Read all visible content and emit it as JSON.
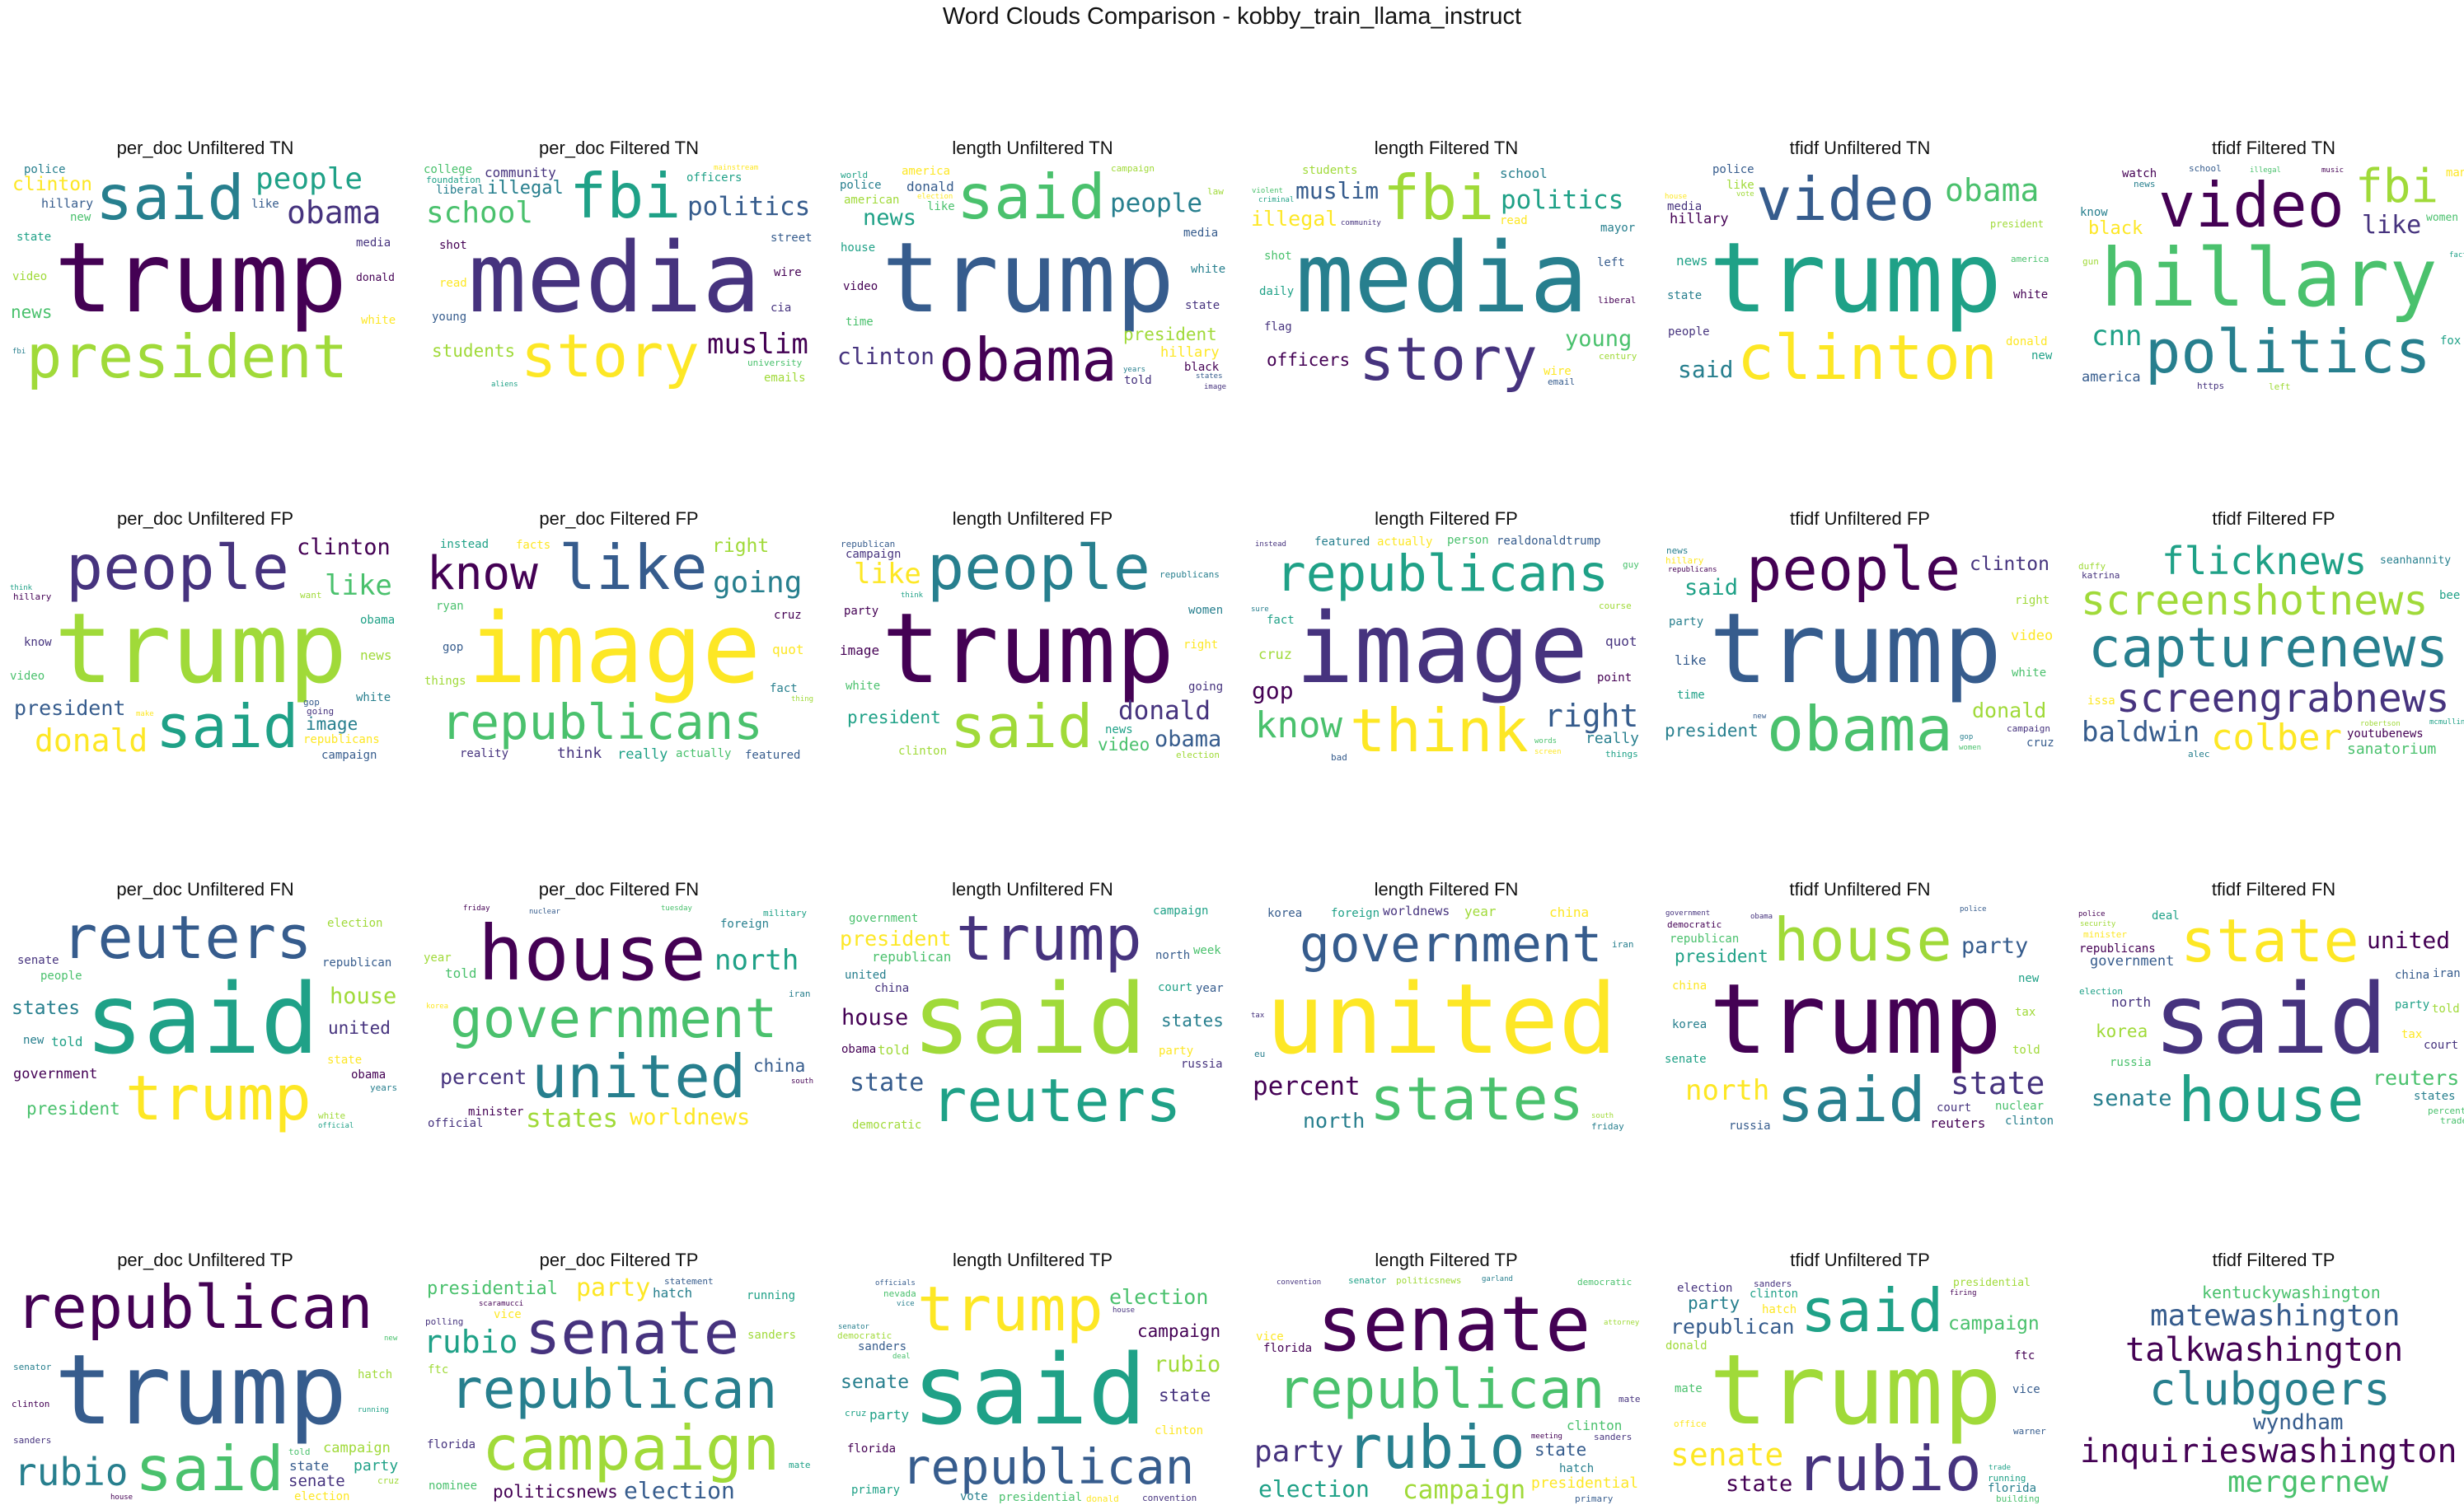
{
  "title": "Word Clouds Comparison - kobby_train_llama_instruct",
  "colors": [
    "#440154",
    "#46337e",
    "#365c8d",
    "#277f8e",
    "#1fa187",
    "#4ac16d",
    "#a0da39",
    "#fde725"
  ],
  "panels": [
    {
      "title": "per_doc Unfiltered TN",
      "words": [
        "trump",
        "said",
        "president",
        "obama",
        "people",
        "clinton",
        "hillary",
        "news",
        "donald",
        "police",
        "video",
        "media",
        "state",
        "white",
        "like",
        "new",
        "house",
        "time",
        "years",
        "american",
        "states",
        "going",
        "security",
        "election",
        "national",
        "fbi",
        "political",
        "says",
        "watch",
        "country",
        "right",
        "wrong",
        "black",
        "government",
        "think"
      ]
    },
    {
      "title": "per_doc Filtered TN",
      "words": [
        "media",
        "fbi",
        "story",
        "politics",
        "school",
        "muslim",
        "illegal",
        "students",
        "community",
        "officers",
        "read",
        "street",
        "university",
        "wire",
        "liberal",
        "emails",
        "cia",
        "foundation",
        "mainstream",
        "young",
        "college",
        "shot",
        "hollywood",
        "leftist",
        "breitbart",
        "aliens",
        "society",
        "reportedly",
        "campus",
        "agents"
      ]
    },
    {
      "title": "length Unfiltered TN",
      "words": [
        "trump",
        "said",
        "obama",
        "people",
        "president",
        "clinton",
        "news",
        "hillary",
        "donald",
        "like",
        "video",
        "white",
        "american",
        "state",
        "house",
        "america",
        "media",
        "time",
        "black",
        "police",
        "campaign",
        "told",
        "world",
        "election",
        "states",
        "security",
        "political",
        "years",
        "law",
        "image"
      ]
    },
    {
      "title": "length Filtered TN",
      "words": [
        "media",
        "fbi",
        "story",
        "politics",
        "illegal",
        "muslim",
        "young",
        "officers",
        "school",
        "students",
        "community",
        "daily",
        "read",
        "left",
        "shot",
        "liberal",
        "mayor",
        "century",
        "flag",
        "criminal",
        "wire",
        "email",
        "violent",
        "records",
        "facebook",
        "leftist",
        "stories",
        "breaking",
        "narrative",
        "controversial"
      ]
    },
    {
      "title": "tfidf Unfiltered TN",
      "words": [
        "trump",
        "clinton",
        "video",
        "obama",
        "hillary",
        "said",
        "president",
        "people",
        "news",
        "donald",
        "police",
        "america",
        "white",
        "state",
        "like",
        "media",
        "new",
        "house",
        "black",
        "politics",
        "american",
        "going",
        "vote",
        "country",
        "watch",
        "fbi",
        "says",
        "want",
        "years",
        "americans"
      ]
    },
    {
      "title": "tfidf Filtered TN",
      "words": [
        "hillary",
        "video",
        "politics",
        "fbi",
        "like",
        "cnn",
        "black",
        "america",
        "women",
        "watch",
        "know",
        "left",
        "https",
        "fox",
        "man",
        "school",
        "illegal",
        "music",
        "news",
        "press",
        "lives",
        "woman",
        "today",
        "students",
        "rally",
        "americans",
        "century",
        "gun",
        "right",
        "fact"
      ]
    },
    {
      "title": "per_doc Unfiltered FP",
      "words": [
        "trump",
        "people",
        "said",
        "donald",
        "president",
        "like",
        "clinton",
        "image",
        "news",
        "know",
        "obama",
        "republicans",
        "campaign",
        "video",
        "hillary",
        "white",
        "want",
        "going",
        "think",
        "make",
        "gop",
        "time",
        "house",
        "black",
        "right",
        "american",
        "election",
        "years",
        "states",
        "says"
      ]
    },
    {
      "title": "per_doc Filtered FP",
      "words": [
        "image",
        "like",
        "republicans",
        "know",
        "going",
        "right",
        "think",
        "really",
        "quot",
        "gop",
        "actually",
        "cruz",
        "fact",
        "things",
        "reality",
        "instead",
        "facts",
        "featured",
        "ryan",
        "realdonaldtrump",
        "pretty",
        "thing",
        "racist",
        "absolutely",
        "vanity",
        "conservatives",
        "bernie",
        "palin",
        "point",
        "imagenes"
      ]
    },
    {
      "title": "length Unfiltered FP",
      "words": [
        "trump",
        "people",
        "said",
        "donald",
        "president",
        "like",
        "obama",
        "video",
        "image",
        "republicans",
        "clinton",
        "campaign",
        "news",
        "right",
        "republican",
        "white",
        "party",
        "women",
        "election",
        "going",
        "think",
        "make",
        "watch",
        "know",
        "time",
        "house",
        "america",
        "states",
        "really",
        "things"
      ]
    },
    {
      "title": "length Filtered FP",
      "words": [
        "image",
        "republicans",
        "think",
        "right",
        "know",
        "gop",
        "really",
        "cruz",
        "quot",
        "fact",
        "actually",
        "realdonaldtrump",
        "person",
        "point",
        "featured",
        "course",
        "instead",
        "things",
        "screen",
        "conservatives",
        "words",
        "bernie",
        "sure",
        "racist",
        "clearly",
        "january",
        "hughes",
        "bad",
        "guy",
        "crowd"
      ]
    },
    {
      "title": "tfidf Unfiltered FP",
      "words": [
        "trump",
        "obama",
        "people",
        "president",
        "donald",
        "clinton",
        "said",
        "video",
        "like",
        "white",
        "republicans",
        "party",
        "right",
        "campaign",
        "time",
        "hillary",
        "cruz",
        "women",
        "america",
        "news",
        "know",
        "make",
        "think",
        "going",
        "new",
        "watch",
        "house",
        "gop",
        "image",
        "says"
      ]
    },
    {
      "title": "tfidf Filtered FP",
      "words": [
        "capturenews",
        "screenshotnews",
        "screengrabnews",
        "flicknews",
        "colber",
        "baldwin",
        "sanatorium",
        "youtubenews",
        "seanhannity",
        "robertson",
        "katrina",
        "mcmullin",
        "issa",
        "sarahpalinusa",
        "disapprove",
        "handshake",
        "alec",
        "duffy",
        "hughes",
        "bee",
        "evolution",
        "mcenany",
        "palatine",
        "spineless",
        "nonsensical",
        "pierre",
        "alicia",
        "obermann",
        "stachowiak",
        "bachmann"
      ]
    },
    {
      "title": "per_doc Unfiltered FN",
      "words": [
        "said",
        "trump",
        "reuters",
        "president",
        "government",
        "states",
        "house",
        "united",
        "told",
        "state",
        "republican",
        "people",
        "obama",
        "new",
        "election",
        "senate",
        "official",
        "political",
        "minister",
        "administration",
        "percent",
        "clinton",
        "white",
        "washington",
        "national",
        "democratic",
        "campaign",
        "including",
        "security",
        "years"
      ]
    },
    {
      "title": "per_doc Filtered FN",
      "words": [
        "government",
        "house",
        "united",
        "states",
        "percent",
        "north",
        "worldnews",
        "china",
        "told",
        "minister",
        "foreign",
        "year",
        "official",
        "military",
        "korea",
        "nuclear",
        "tuesday",
        "friday",
        "iran",
        "administration",
        "islamic",
        "leader",
        "sanctions",
        "spokesman",
        "international",
        "south",
        "billion",
        "leaders",
        "russia",
        "talks"
      ]
    },
    {
      "title": "length Unfiltered FN",
      "words": [
        "said",
        "trump",
        "reuters",
        "president",
        "state",
        "republican",
        "house",
        "states",
        "told",
        "china",
        "court",
        "party",
        "north",
        "government",
        "obama",
        "united",
        "democratic",
        "russia",
        "campaign",
        "election",
        "year",
        "week",
        "security",
        "country",
        "official",
        "police",
        "federal",
        "statement",
        "people",
        "senate"
      ]
    },
    {
      "title": "length Filtered FN",
      "words": [
        "united",
        "government",
        "states",
        "percent",
        "north",
        "year",
        "worldnews",
        "foreign",
        "china",
        "korea",
        "minister",
        "military",
        "friday",
        "congress",
        "billion",
        "secretary",
        "nuclear",
        "leaders",
        "islamic",
        "official",
        "iran",
        "south",
        "tax",
        "economic",
        "talks",
        "international",
        "opposition",
        "germany",
        "eu",
        "spokesman"
      ]
    },
    {
      "title": "tfidf Unfiltered FN",
      "words": [
        "trump",
        "said",
        "house",
        "state",
        "president",
        "north",
        "party",
        "republican",
        "reuters",
        "korea",
        "tax",
        "court",
        "senate",
        "china",
        "russia",
        "nuclear",
        "democratic",
        "clinton",
        "told",
        "government",
        "new",
        "official",
        "police",
        "united",
        "meeting",
        "politicsnews",
        "worldnews",
        "obama",
        "trade",
        "election"
      ]
    },
    {
      "title": "tfidf Filtered FN",
      "words": [
        "said",
        "house",
        "state",
        "government",
        "reuters",
        "united",
        "senate",
        "korea",
        "north",
        "party",
        "tax",
        "china",
        "russia",
        "republicans",
        "states",
        "told",
        "court",
        "election",
        "minister",
        "iran",
        "percent",
        "politicsnews",
        "worldnews",
        "security",
        "administration",
        "deal",
        "wednesday",
        "officials",
        "trade",
        "police"
      ]
    },
    {
      "title": "per_doc Unfiltered TP",
      "words": [
        "trump",
        "said",
        "republican",
        "rubio",
        "campaign",
        "senate",
        "party",
        "election",
        "state",
        "presidential",
        "clinton",
        "senator",
        "hatch",
        "sanders",
        "running",
        "politicsnews",
        "donald",
        "told",
        "house",
        "democratic",
        "cruz",
        "vote",
        "primary",
        "nominee",
        "florida",
        "new",
        "year",
        "group",
        "candidates",
        "monday"
      ]
    },
    {
      "title": "per_doc Filtered TP",
      "words": [
        "republican",
        "campaign",
        "senate",
        "rubio",
        "party",
        "election",
        "presidential",
        "politicsnews",
        "hatch",
        "sanders",
        "florida",
        "running",
        "vice",
        "statement",
        "nominee",
        "scaramucci",
        "supporters",
        "commission",
        "polling",
        "possible",
        "ohlhausen",
        "garland",
        "office",
        "primary",
        "secretary",
        "ftc",
        "meeting",
        "mate",
        "nevada",
        "accused"
      ]
    },
    {
      "title": "length Unfiltered TP",
      "words": [
        "said",
        "trump",
        "republican",
        "election",
        "campaign",
        "senate",
        "rubio",
        "state",
        "party",
        "clinton",
        "sanders",
        "presidential",
        "florida",
        "vote",
        "democratic",
        "convention",
        "primary",
        "donald",
        "officials",
        "nevada",
        "statement",
        "senator",
        "running",
        "house",
        "cruz",
        "nominee",
        "sunday",
        "deal",
        "debate",
        "vice"
      ]
    },
    {
      "title": "length Filtered TP",
      "words": [
        "republican",
        "senate",
        "rubio",
        "campaign",
        "party",
        "election",
        "presidential",
        "state",
        "clinton",
        "florida",
        "hatch",
        "politicsnews",
        "sanders",
        "senator",
        "vice",
        "primary",
        "democratic",
        "meeting",
        "garland",
        "attorney",
        "convention",
        "running",
        "polling",
        "possible",
        "executive",
        "delegates",
        "accused",
        "nevada",
        "mate",
        "warner"
      ]
    },
    {
      "title": "tfidf Unfiltered TP",
      "words": [
        "trump",
        "rubio",
        "said",
        "senate",
        "republican",
        "campaign",
        "state",
        "party",
        "presidential",
        "election",
        "clinton",
        "hatch",
        "vice",
        "mate",
        "ftc",
        "florida",
        "donald",
        "sanders",
        "running",
        "office",
        "warner",
        "building",
        "firing",
        "scaramucci",
        "ohlhausen",
        "nevada",
        "trade",
        "meeting",
        "politicsnews",
        "financial"
      ]
    },
    {
      "title": "tfidf Filtered TP",
      "words": [
        "clubgoers",
        "talkwashington",
        "inquirieswashington",
        "matewashington",
        "mergernew",
        "wyndham",
        "kentuckywashington"
      ]
    }
  ]
}
